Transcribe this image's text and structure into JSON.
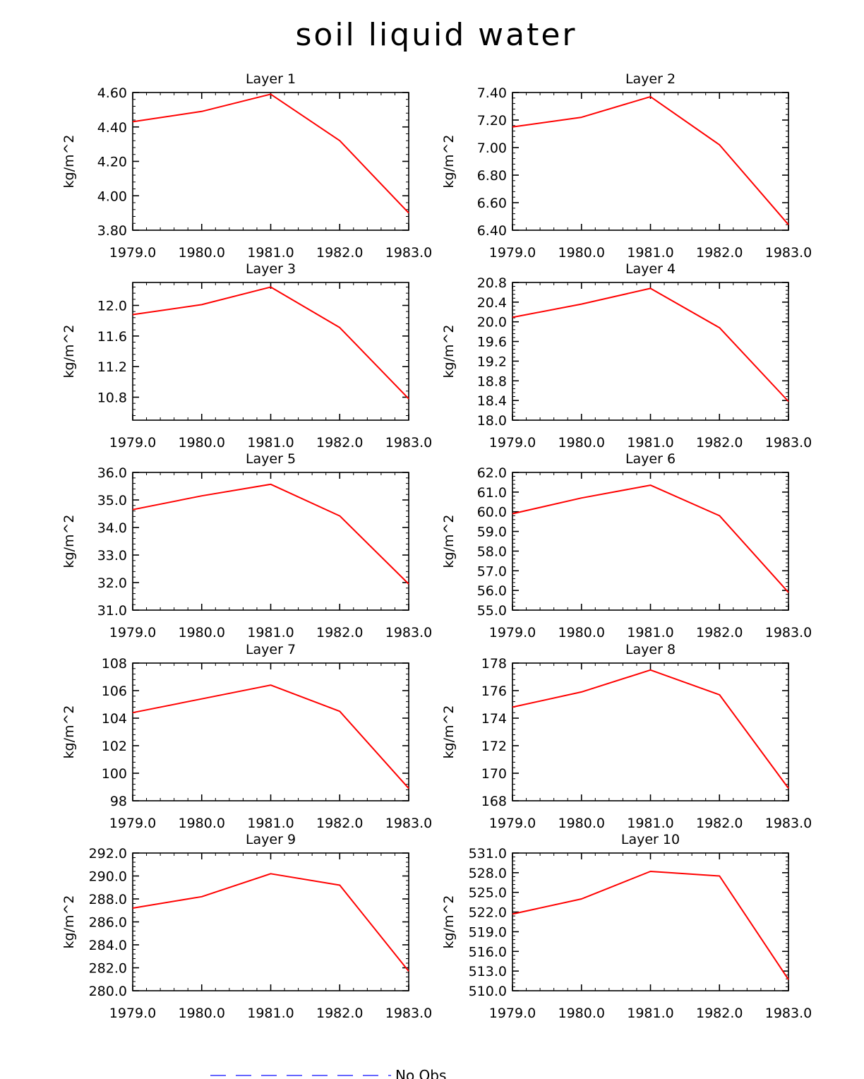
{
  "title": "soil liquid water",
  "legend": {
    "label": "No Obs",
    "color": "#6666ff"
  },
  "line_color": "#ff0000",
  "chart_data": [
    {
      "type": "line",
      "title": "Layer 1",
      "ylabel": "kg/m^2",
      "x": [
        1979,
        1980,
        1981,
        1982,
        1983
      ],
      "xticks": [
        "1979.0",
        "1980.0",
        "1981.0",
        "1982.0",
        "1983.0"
      ],
      "ylim": [
        3.8,
        4.6
      ],
      "yticks": [
        3.8,
        4.0,
        4.2,
        4.4,
        4.6
      ],
      "ytick_labels": [
        "3.80",
        "4.00",
        "4.20",
        "4.40",
        "4.60"
      ],
      "series": [
        {
          "name": "soil liquid water",
          "values": [
            4.43,
            4.49,
            4.59,
            4.32,
            3.9
          ]
        }
      ]
    },
    {
      "type": "line",
      "title": "Layer 2",
      "ylabel": "kg/m^2",
      "x": [
        1979,
        1980,
        1981,
        1982,
        1983
      ],
      "xticks": [
        "1979.0",
        "1980.0",
        "1981.0",
        "1982.0",
        "1983.0"
      ],
      "ylim": [
        6.4,
        7.4
      ],
      "yticks": [
        6.4,
        6.6,
        6.8,
        7.0,
        7.2,
        7.4
      ],
      "ytick_labels": [
        "6.40",
        "6.60",
        "6.80",
        "7.00",
        "7.20",
        "7.40"
      ],
      "series": [
        {
          "name": "soil liquid water",
          "values": [
            7.15,
            7.22,
            7.37,
            7.02,
            6.44
          ]
        }
      ]
    },
    {
      "type": "line",
      "title": "Layer 3",
      "ylabel": "kg/m^2",
      "x": [
        1979,
        1980,
        1981,
        1982,
        1983
      ],
      "xticks": [
        "1979.0",
        "1980.0",
        "1981.0",
        "1982.0",
        "1983.0"
      ],
      "ylim": [
        10.5,
        12.3
      ],
      "yticks": [
        10.8,
        11.2,
        11.6,
        12.0
      ],
      "ytick_labels": [
        "10.8",
        "11.2",
        "11.6",
        "12.0"
      ],
      "series": [
        {
          "name": "soil liquid water",
          "values": [
            11.88,
            12.01,
            12.24,
            11.71,
            10.78
          ]
        }
      ]
    },
    {
      "type": "line",
      "title": "Layer 4",
      "ylabel": "kg/m^2",
      "x": [
        1979,
        1980,
        1981,
        1982,
        1983
      ],
      "xticks": [
        "1979.0",
        "1980.0",
        "1981.0",
        "1982.0",
        "1983.0"
      ],
      "ylim": [
        18.0,
        20.8
      ],
      "yticks": [
        18.0,
        18.4,
        18.8,
        19.2,
        19.6,
        20.0,
        20.4,
        20.8
      ],
      "ytick_labels": [
        "18.0",
        "18.4",
        "18.8",
        "19.2",
        "19.6",
        "20.0",
        "20.4",
        "20.8"
      ],
      "series": [
        {
          "name": "soil liquid water",
          "values": [
            20.09,
            20.36,
            20.68,
            19.88,
            18.38
          ]
        }
      ]
    },
    {
      "type": "line",
      "title": "Layer 5",
      "ylabel": "kg/m^2",
      "x": [
        1979,
        1980,
        1981,
        1982,
        1983
      ],
      "xticks": [
        "1979.0",
        "1980.0",
        "1981.0",
        "1982.0",
        "1983.0"
      ],
      "ylim": [
        31.0,
        36.0
      ],
      "yticks": [
        31.0,
        32.0,
        33.0,
        34.0,
        35.0,
        36.0
      ],
      "ytick_labels": [
        "31.0",
        "32.0",
        "33.0",
        "34.0",
        "35.0",
        "36.0"
      ],
      "series": [
        {
          "name": "soil liquid water",
          "values": [
            34.65,
            35.15,
            35.57,
            34.42,
            31.95
          ]
        }
      ]
    },
    {
      "type": "line",
      "title": "Layer 6",
      "ylabel": "kg/m^2",
      "x": [
        1979,
        1980,
        1981,
        1982,
        1983
      ],
      "xticks": [
        "1979.0",
        "1980.0",
        "1981.0",
        "1982.0",
        "1983.0"
      ],
      "ylim": [
        55.0,
        62.0
      ],
      "yticks": [
        55.0,
        56.0,
        57.0,
        58.0,
        59.0,
        60.0,
        61.0,
        62.0
      ],
      "ytick_labels": [
        "55.0",
        "56.0",
        "57.0",
        "58.0",
        "59.0",
        "60.0",
        "61.0",
        "62.0"
      ],
      "series": [
        {
          "name": "soil liquid water",
          "values": [
            59.9,
            60.7,
            61.35,
            59.8,
            55.9
          ]
        }
      ]
    },
    {
      "type": "line",
      "title": "Layer 7",
      "ylabel": "kg/m^2",
      "x": [
        1979,
        1980,
        1981,
        1982,
        1983
      ],
      "xticks": [
        "1979.0",
        "1980.0",
        "1981.0",
        "1982.0",
        "1983.0"
      ],
      "ylim": [
        98,
        108
      ],
      "yticks": [
        98,
        100,
        102,
        104,
        106,
        108
      ],
      "ytick_labels": [
        "98",
        "100",
        "102",
        "104",
        "106",
        "108"
      ],
      "series": [
        {
          "name": "soil liquid water",
          "values": [
            104.4,
            105.4,
            106.4,
            104.5,
            98.9
          ]
        }
      ]
    },
    {
      "type": "line",
      "title": "Layer 8",
      "ylabel": "kg/m^2",
      "x": [
        1979,
        1980,
        1981,
        1982,
        1983
      ],
      "xticks": [
        "1979.0",
        "1980.0",
        "1981.0",
        "1982.0",
        "1983.0"
      ],
      "ylim": [
        168,
        178
      ],
      "yticks": [
        168,
        170,
        172,
        174,
        176,
        178
      ],
      "ytick_labels": [
        "168",
        "170",
        "172",
        "174",
        "176",
        "178"
      ],
      "series": [
        {
          "name": "soil liquid water",
          "values": [
            174.8,
            175.9,
            177.5,
            175.7,
            168.9
          ]
        }
      ]
    },
    {
      "type": "line",
      "title": "Layer 9",
      "ylabel": "kg/m^2",
      "x": [
        1979,
        1980,
        1981,
        1982,
        1983
      ],
      "xticks": [
        "1979.0",
        "1980.0",
        "1981.0",
        "1982.0",
        "1983.0"
      ],
      "ylim": [
        280.0,
        292.0
      ],
      "yticks": [
        280.0,
        282.0,
        284.0,
        286.0,
        288.0,
        290.0,
        292.0
      ],
      "ytick_labels": [
        "280.0",
        "282.0",
        "284.0",
        "286.0",
        "288.0",
        "290.0",
        "292.0"
      ],
      "series": [
        {
          "name": "soil liquid water",
          "values": [
            287.2,
            288.2,
            290.2,
            289.2,
            281.7
          ]
        }
      ]
    },
    {
      "type": "line",
      "title": "Layer 10",
      "ylabel": "kg/m^2",
      "x": [
        1979,
        1980,
        1981,
        1982,
        1983
      ],
      "xticks": [
        "1979.0",
        "1980.0",
        "1981.0",
        "1982.0",
        "1983.0"
      ],
      "ylim": [
        510.0,
        531.0
      ],
      "yticks": [
        510.0,
        513.0,
        516.0,
        519.0,
        522.0,
        525.0,
        528.0,
        531.0
      ],
      "ytick_labels": [
        "510.0",
        "513.0",
        "516.0",
        "519.0",
        "522.0",
        "525.0",
        "528.0",
        "531.0"
      ],
      "series": [
        {
          "name": "soil liquid water",
          "values": [
            521.7,
            524.0,
            528.2,
            527.5,
            511.7
          ]
        }
      ]
    }
  ]
}
